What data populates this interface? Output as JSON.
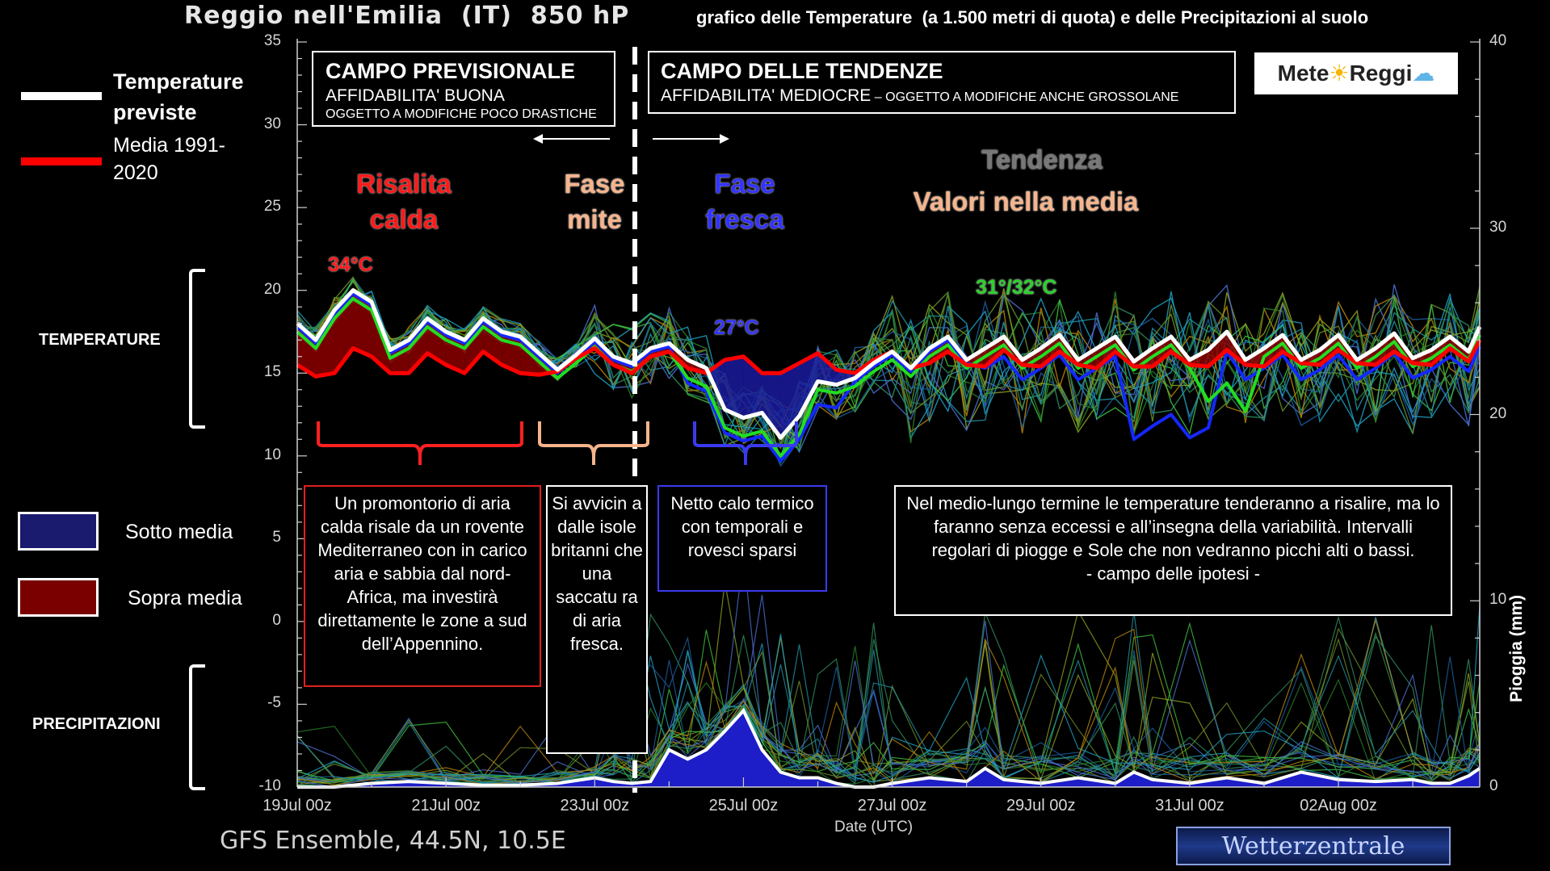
{
  "header": {
    "left": "Reggio nell'Emilia  (IT)  850 hP",
    "right": "grafico delle Temperature  (a 1.500 metri di quota) e delle Precipitazioni al suolo"
  },
  "legend": {
    "temp_line": "Temperature previste",
    "mean_line": "Media 1991-2020",
    "below": "Sotto media",
    "above": "Sopra media"
  },
  "side_labels": {
    "temperature": "TEMPERATURE",
    "precip": "PRECIPITAZIONI"
  },
  "boxes": {
    "prev": {
      "title": "CAMPO PREVISIONALE",
      "line1": "AFFIDABILITA' BUONA",
      "line2": "OGGETTO A MODIFICHE POCO DRASTICHE"
    },
    "tend": {
      "title": "CAMPO DELLE TENDENZE",
      "line1": "AFFIDABILITA' MEDIOCRE",
      "line2": " – OGGETTO A MODIFICHE ANCHE GROSSOLANE"
    }
  },
  "phases": {
    "risalita": "Risalita calda",
    "mite": "Fase mite",
    "fresca": "Fase fresca",
    "tendenza": "Tendenza",
    "valori": "Valori nella media"
  },
  "tags": {
    "t34": "34°C",
    "t27": "27°C",
    "t31": "31°/32°C"
  },
  "notes": {
    "n1": "Un promontorio di aria calda risale da un rovente Mediterraneo con in carico aria e sabbia dal nord-Africa, ma investirà direttamente le zone a sud dell’Appennino.",
    "n2": "Si avvicin a dalle isole britanni che una saccatu ra di aria fresca.",
    "n3": "Netto calo termico con temporali e rovesci sparsi",
    "n4": "Nel medio-lungo termine le temperature tenderanno a risalire, ma lo faranno senza eccessi e all’insegna della variabilità. Intervalli regolari di piogge e Sole che non vedranno picchi alti o bassi.",
    "n4b": "- campo delle ipotesi -"
  },
  "logo": {
    "left": "Mete",
    "right": "Reggi"
  },
  "footer": {
    "source": "GFS Ensemble, 44.5N, 10.5E",
    "watermark": "Wetterzentrale"
  },
  "colors": {
    "forecast": "#ffffff",
    "mean": "#ff0000",
    "below": "#1a1a9e",
    "above": "#8b0000",
    "control": "#1428ff",
    "operational": "#22dd22",
    "red_text": "#ff1a1a",
    "orange_text": "#f6b48c",
    "blue_text": "#3333ff",
    "bracket_red": "#ff2020",
    "bracket_orange": "#f6b48c",
    "bracket_blue": "#3a3af0"
  },
  "chart_data": {
    "type": "line",
    "xlabel": "Date (UTC)",
    "ylabel_right": "Pioggia (mm)",
    "ylim": [
      -10,
      35
    ],
    "ylim_right": [
      0,
      40
    ],
    "yticks": [
      35,
      30,
      25,
      20,
      15,
      10,
      5,
      0,
      -5,
      -10
    ],
    "yticks_right": [
      40,
      30,
      20,
      10,
      0
    ],
    "x_ticks": [
      "19Jul 00z",
      "21Jul 00z",
      "23Jul 00z",
      "25Jul 00z",
      "27Jul 00z",
      "29Jul 00z",
      "31Jul 00z",
      "02Aug 00z"
    ],
    "x_days": [
      0,
      2,
      4,
      6,
      8,
      10,
      12,
      14
    ],
    "x_range": [
      0,
      15.9
    ],
    "series": [
      {
        "name": "Temperature previste",
        "x": [
          0,
          0.25,
          0.5,
          0.75,
          1,
          1.25,
          1.5,
          1.75,
          2,
          2.25,
          2.5,
          2.75,
          3,
          3.25,
          3.5,
          3.75,
          4,
          4.25,
          4.5,
          4.75,
          5,
          5.25,
          5.5,
          5.75,
          6,
          6.25,
          6.5,
          6.75,
          7,
          7.25,
          7.5,
          7.75,
          8,
          8.25,
          8.5,
          8.75,
          9,
          9.25,
          9.5,
          9.75,
          10,
          10.25,
          10.5,
          10.75,
          11,
          11.25,
          11.5,
          11.75,
          12,
          12.25,
          12.5,
          12.75,
          13,
          13.25,
          13.5,
          13.75,
          14,
          14.25,
          14.5,
          14.75,
          15,
          15.25,
          15.5,
          15.75,
          15.9
        ],
        "y": [
          18,
          17,
          18.8,
          20,
          19.3,
          16.4,
          17,
          18.3,
          17.5,
          17,
          18.3,
          17.5,
          17.2,
          16.2,
          15.2,
          16.1,
          17.1,
          16,
          15.6,
          16.5,
          16.8,
          15.8,
          15.3,
          12.8,
          12.3,
          12.6,
          11.1,
          12.4,
          14.5,
          14.3,
          14.7,
          15.6,
          16.3,
          15.3,
          16.5,
          17.2,
          15.8,
          16.5,
          17.2,
          15.8,
          16.5,
          17.3,
          15.8,
          16.5,
          17.2,
          15.7,
          16.5,
          17.2,
          15.8,
          16.4,
          17.5,
          15.8,
          16.5,
          17.3,
          15.8,
          16.4,
          17.3,
          15.8,
          16.5,
          17.4,
          15.9,
          16.4,
          17.2,
          16.3,
          17.8
        ]
      },
      {
        "name": "Media 1991-2020",
        "x": [
          0,
          0.25,
          0.5,
          0.75,
          1,
          1.25,
          1.5,
          1.75,
          2,
          2.25,
          2.5,
          2.75,
          3,
          3.25,
          3.5,
          3.75,
          4,
          4.25,
          4.5,
          4.75,
          5,
          5.25,
          5.5,
          5.75,
          6,
          6.25,
          6.5,
          6.75,
          7,
          7.25,
          7.5,
          7.75,
          8,
          8.25,
          8.5,
          8.75,
          9,
          9.25,
          9.5,
          9.75,
          10,
          10.25,
          10.5,
          10.75,
          11,
          11.25,
          11.5,
          11.75,
          12,
          12.25,
          12.5,
          12.75,
          13,
          13.25,
          13.5,
          13.75,
          14,
          14.25,
          14.5,
          14.75,
          15,
          15.25,
          15.5,
          15.75,
          15.9
        ],
        "y": [
          15.5,
          14.8,
          15,
          16.5,
          16,
          15,
          15,
          16.2,
          15.5,
          15,
          16.3,
          15.5,
          15,
          14.9,
          15.1,
          15.9,
          16.5,
          15.5,
          15,
          16,
          16.3,
          15.3,
          15,
          15.8,
          16,
          15,
          15,
          15.6,
          16.2,
          15.2,
          15,
          15.8,
          16.3,
          15.3,
          15.6,
          16.3,
          15.5,
          15.4,
          16.4,
          15.5,
          15.4,
          16.3,
          15.5,
          15.3,
          16.3,
          15.4,
          15.4,
          16.3,
          15.5,
          15.4,
          16.4,
          15.5,
          15.4,
          16.3,
          15.6,
          15.5,
          16.4,
          15.6,
          15.5,
          16.3,
          15.6,
          15.5,
          16.5,
          15.7,
          17
        ]
      },
      {
        "name": "Pioggia (mm)",
        "x": [
          0,
          0.5,
          1,
          1.5,
          2,
          2.5,
          3,
          3.5,
          4,
          4.25,
          4.5,
          4.75,
          5,
          5.25,
          5.5,
          5.75,
          6,
          6.25,
          6.5,
          6.75,
          7,
          7.25,
          7.5,
          7.75,
          8,
          8.5,
          9,
          9.25,
          9.5,
          10,
          10.5,
          11,
          11.25,
          11.5,
          12,
          12.5,
          13,
          13.5,
          14,
          14.5,
          15,
          15.25,
          15.5,
          15.75,
          15.9
        ],
        "y": [
          0,
          0,
          0.2,
          0.3,
          0.2,
          0.1,
          0.1,
          0.2,
          0.5,
          0.3,
          0.2,
          0.3,
          2,
          1.5,
          2,
          3,
          4.1,
          2,
          0.8,
          0.5,
          0.5,
          0.2,
          0,
          0,
          0.2,
          0.5,
          0.3,
          1,
          0.4,
          0.2,
          0.5,
          0.2,
          0.8,
          0.4,
          0.2,
          0.5,
          0.2,
          0.8,
          0.4,
          0.3,
          0.4,
          0.2,
          0.2,
          0.6,
          1
        ]
      }
    ]
  }
}
